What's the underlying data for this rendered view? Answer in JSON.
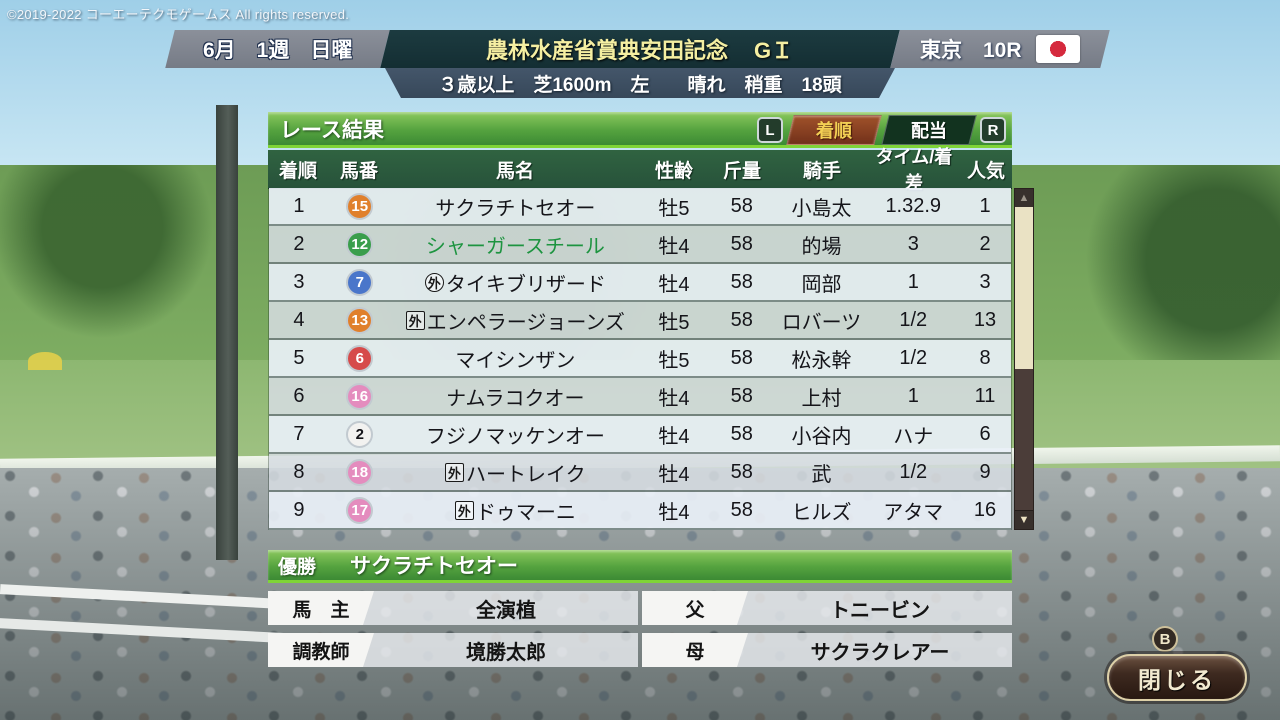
{
  "copyright": "©2019-2022 コーエーテクモゲームス All rights reserved.",
  "header": {
    "date": "6月　1週　日曜",
    "race_title": "農林水産省賞典安田記念",
    "grade": "GＩ",
    "venue": "東京　10R",
    "flag": "japan-flag",
    "conditions": "３歳以上　芝1600m　左　　晴れ　稍重　18頭"
  },
  "panel": {
    "title": "レース結果",
    "left_bumper": "L",
    "right_bumper": "R",
    "tabs": [
      {
        "label": "着順",
        "active": true
      },
      {
        "label": "配当",
        "active": false
      }
    ]
  },
  "table": {
    "headers": [
      "着順",
      "馬番",
      "馬名",
      "性齢",
      "斤量",
      "騎手",
      "タイム/着差",
      "人気"
    ],
    "rows": [
      {
        "pos": "1",
        "num": "15",
        "num_bg": "#e0802c",
        "num_fg": "#ffffff",
        "mark": "",
        "mark_type": "",
        "name": "サクラチトセオー",
        "name_color": "#15151a",
        "sex_age": "牡5",
        "weight": "58",
        "jockey": "小島太",
        "time": "1.32.9",
        "pop": "1"
      },
      {
        "pos": "2",
        "num": "12",
        "num_bg": "#3a9e4c",
        "num_fg": "#ffffff",
        "mark": "",
        "mark_type": "",
        "name": "シャーガースチール",
        "name_color": "#1d9440",
        "sex_age": "牡4",
        "weight": "58",
        "jockey": "的場",
        "time": "3",
        "pop": "2"
      },
      {
        "pos": "3",
        "num": "7",
        "num_bg": "#4a76ca",
        "num_fg": "#ffffff",
        "mark": "外",
        "mark_type": "circle",
        "name": "タイキブリザード",
        "name_color": "#15151a",
        "sex_age": "牡4",
        "weight": "58",
        "jockey": "岡部",
        "time": "1",
        "pop": "3"
      },
      {
        "pos": "4",
        "num": "13",
        "num_bg": "#e0802c",
        "num_fg": "#ffffff",
        "mark": "外",
        "mark_type": "box",
        "name": "エンペラージョーンズ",
        "name_color": "#15151a",
        "sex_age": "牡5",
        "weight": "58",
        "jockey": "ロバーツ",
        "time": "1/2",
        "pop": "13"
      },
      {
        "pos": "5",
        "num": "6",
        "num_bg": "#d64a4a",
        "num_fg": "#ffffff",
        "mark": "",
        "mark_type": "",
        "name": "マイシンザン",
        "name_color": "#15151a",
        "sex_age": "牡5",
        "weight": "58",
        "jockey": "松永幹",
        "time": "1/2",
        "pop": "8"
      },
      {
        "pos": "6",
        "num": "16",
        "num_bg": "#e48cbe",
        "num_fg": "#ffffff",
        "mark": "",
        "mark_type": "",
        "name": "ナムラコクオー",
        "name_color": "#15151a",
        "sex_age": "牡4",
        "weight": "58",
        "jockey": "上村",
        "time": "1",
        "pop": "11"
      },
      {
        "pos": "7",
        "num": "2",
        "num_bg": "#f2f2f0",
        "num_fg": "#15151a",
        "mark": "",
        "mark_type": "",
        "name": "フジノマッケンオー",
        "name_color": "#15151a",
        "sex_age": "牡4",
        "weight": "58",
        "jockey": "小谷内",
        "time": "ハナ",
        "pop": "6"
      },
      {
        "pos": "8",
        "num": "18",
        "num_bg": "#e48cbe",
        "num_fg": "#ffffff",
        "mark": "外",
        "mark_type": "box",
        "name": "ハートレイク",
        "name_color": "#15151a",
        "sex_age": "牡4",
        "weight": "58",
        "jockey": "武",
        "time": "1/2",
        "pop": "9"
      },
      {
        "pos": "9",
        "num": "17",
        "num_bg": "#e48cbe",
        "num_fg": "#ffffff",
        "mark": "外",
        "mark_type": "box",
        "name": "ドゥマーニ",
        "name_color": "#15151a",
        "sex_age": "牡4",
        "weight": "58",
        "jockey": "ヒルズ",
        "time": "アタマ",
        "pop": "16"
      }
    ]
  },
  "winner": {
    "label": "優勝",
    "name": "サクラチトセオー",
    "details": [
      {
        "label": "馬　主",
        "value": "全演植"
      },
      {
        "label": "父",
        "value": "トニービン"
      },
      {
        "label": "調教師",
        "value": "境勝太郎"
      },
      {
        "label": "母",
        "value": "サクラクレアー"
      }
    ]
  },
  "scrollbar": {
    "up_icon": "▲",
    "down_icon": "▼"
  },
  "close": {
    "hint": "B",
    "label": "閉じる"
  }
}
